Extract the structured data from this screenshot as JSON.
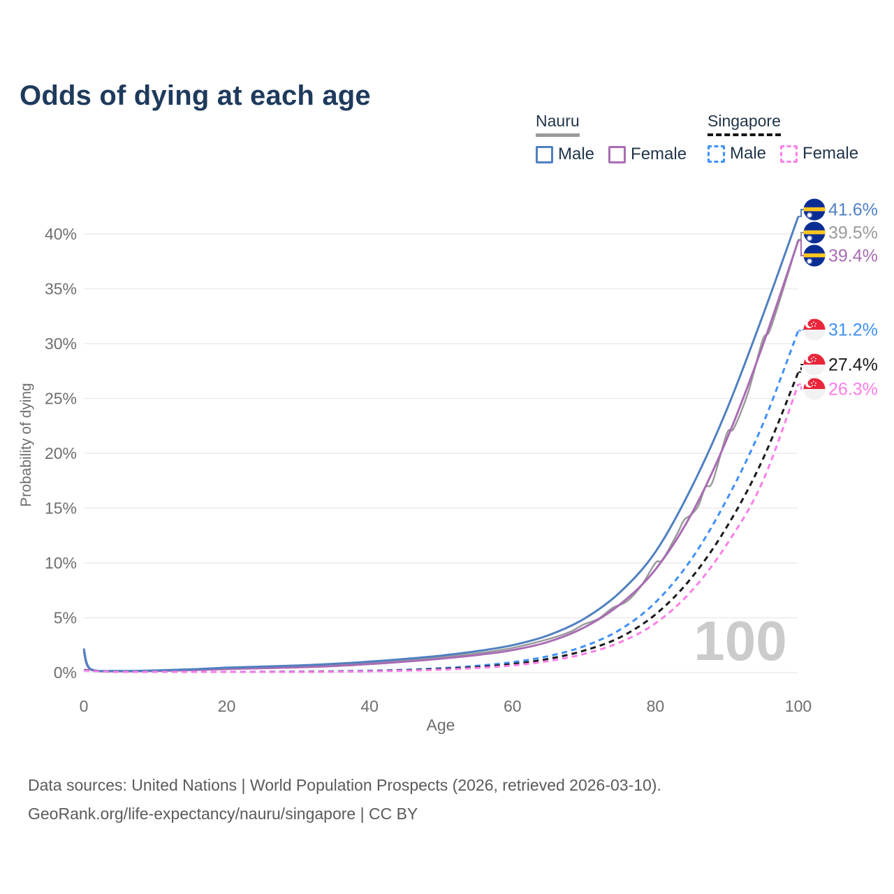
{
  "title": "Odds of dying at each age",
  "legend": {
    "groups": [
      {
        "name": "Nauru",
        "line_style": "solid",
        "line_color": "#9a9a9a",
        "items": [
          {
            "label": "Male",
            "swatch_color": "#5080c0",
            "dashed": false
          },
          {
            "label": "Female",
            "swatch_color": "#a96cb4",
            "dashed": false
          }
        ]
      },
      {
        "name": "Singapore",
        "line_style": "dashed",
        "line_color": "#141414",
        "items": [
          {
            "label": "Male",
            "swatch_color": "#4090f7",
            "dashed": true
          },
          {
            "label": "Female",
            "swatch_color": "#fb7de9",
            "dashed": true
          }
        ]
      }
    ]
  },
  "annotations": {
    "age_counter": "100"
  },
  "footer": {
    "line1": "Data sources: United Nations | World Population Prospects (2026, retrieved 2026-03-10).",
    "line2": "GeoRank.org/life-expectancy/nauru/singapore | CC BY"
  },
  "chart_data": {
    "type": "line",
    "title": "Odds of dying at each age",
    "xlabel": "Age",
    "ylabel": "Probability of dying",
    "xlim": [
      0,
      100
    ],
    "ylim": [
      0,
      43
    ],
    "grid": "horizontal",
    "gridline_color": "#ebebeb",
    "axis_text_color": "#6e6e6e",
    "watermark_color": "#cbcbcb",
    "x_ticks": [
      {
        "v": 0,
        "label": "0"
      },
      {
        "v": 20,
        "label": "20"
      },
      {
        "v": 40,
        "label": "40"
      },
      {
        "v": 60,
        "label": "60"
      },
      {
        "v": 80,
        "label": "80"
      },
      {
        "v": 100,
        "label": "100"
      }
    ],
    "y_ticks": [
      {
        "v": 0,
        "label": "0%"
      },
      {
        "v": 5,
        "label": "5%"
      },
      {
        "v": 10,
        "label": "10%"
      },
      {
        "v": 15,
        "label": "15%"
      },
      {
        "v": 20,
        "label": "20%"
      },
      {
        "v": 25,
        "label": "25%"
      },
      {
        "v": 30,
        "label": "30%"
      },
      {
        "v": 35,
        "label": "35%"
      },
      {
        "v": 40,
        "label": "40%"
      }
    ],
    "series": [
      {
        "id": "nauru_total",
        "name": "Nauru (both sexes)",
        "country": "Nauru",
        "sex": "Total",
        "color": "#9a9a9a",
        "dashed": false,
        "width": 2.5,
        "flag": "nauru",
        "end_label": "39.5%",
        "label_color": "#9a9a9a",
        "points": [
          [
            0,
            2.05
          ],
          [
            1,
            0.28
          ],
          [
            5,
            0.13
          ],
          [
            10,
            0.17
          ],
          [
            15,
            0.26
          ],
          [
            20,
            0.38
          ],
          [
            25,
            0.47
          ],
          [
            30,
            0.56
          ],
          [
            35,
            0.7
          ],
          [
            40,
            0.89
          ],
          [
            45,
            1.12
          ],
          [
            50,
            1.4
          ],
          [
            55,
            1.75
          ],
          [
            60,
            2.25
          ],
          [
            65,
            3.05
          ],
          [
            68,
            3.7
          ],
          [
            70,
            4.4
          ],
          [
            72,
            4.9
          ],
          [
            74,
            5.9
          ],
          [
            76,
            6.5
          ],
          [
            78,
            7.9
          ],
          [
            80,
            10.0
          ],
          [
            81,
            10.3
          ],
          [
            83,
            12.6
          ],
          [
            84,
            13.9
          ],
          [
            85,
            14.4
          ],
          [
            86,
            15.2
          ],
          [
            87,
            16.9
          ],
          [
            88,
            17.4
          ],
          [
            90,
            21.8
          ],
          [
            91,
            22.3
          ],
          [
            93,
            25.6
          ],
          [
            95,
            30.3
          ],
          [
            96,
            31.2
          ],
          [
            98,
            35.2
          ],
          [
            100,
            39.5
          ]
        ]
      },
      {
        "id": "nauru_female",
        "name": "Nauru Female",
        "country": "Nauru",
        "sex": "Female",
        "color": "#a96cb4",
        "dashed": false,
        "width": 3,
        "flag": "nauru",
        "end_label": "39.4%",
        "label_color": "#a96cb4",
        "points": [
          [
            0,
            1.95
          ],
          [
            1,
            0.25
          ],
          [
            5,
            0.12
          ],
          [
            10,
            0.15
          ],
          [
            15,
            0.22
          ],
          [
            20,
            0.32
          ],
          [
            25,
            0.4
          ],
          [
            30,
            0.48
          ],
          [
            35,
            0.6
          ],
          [
            40,
            0.78
          ],
          [
            45,
            1.0
          ],
          [
            50,
            1.27
          ],
          [
            55,
            1.6
          ],
          [
            60,
            2.05
          ],
          [
            65,
            2.8
          ],
          [
            70,
            4.1
          ],
          [
            75,
            6.2
          ],
          [
            80,
            9.4
          ],
          [
            85,
            14.4
          ],
          [
            90,
            21.3
          ],
          [
            95,
            29.8
          ],
          [
            100,
            39.4
          ]
        ]
      },
      {
        "id": "nauru_male",
        "name": "Nauru Male",
        "country": "Nauru",
        "sex": "Male",
        "color": "#5080c0",
        "dashed": false,
        "width": 3,
        "flag": "nauru",
        "end_label": "41.6%",
        "label_color": "#5080c5",
        "points": [
          [
            0,
            2.2
          ],
          [
            1,
            0.3
          ],
          [
            5,
            0.15
          ],
          [
            10,
            0.2
          ],
          [
            15,
            0.3
          ],
          [
            20,
            0.45
          ],
          [
            25,
            0.55
          ],
          [
            30,
            0.65
          ],
          [
            35,
            0.8
          ],
          [
            40,
            1.0
          ],
          [
            45,
            1.25
          ],
          [
            50,
            1.55
          ],
          [
            55,
            1.95
          ],
          [
            60,
            2.5
          ],
          [
            65,
            3.4
          ],
          [
            70,
            4.9
          ],
          [
            75,
            7.3
          ],
          [
            80,
            11.0
          ],
          [
            85,
            16.8
          ],
          [
            90,
            24.0
          ],
          [
            95,
            32.5
          ],
          [
            100,
            41.6
          ]
        ]
      },
      {
        "id": "singapore_male",
        "name": "Singapore Male",
        "country": "Singapore",
        "sex": "Male",
        "color": "#4090f7",
        "dashed": true,
        "width": 3,
        "flag": "singapore",
        "end_label": "31.2%",
        "label_color": "#4090f7",
        "points": [
          [
            0,
            0.25
          ],
          [
            5,
            0.02
          ],
          [
            10,
            0.03
          ],
          [
            15,
            0.05
          ],
          [
            20,
            0.07
          ],
          [
            25,
            0.08
          ],
          [
            30,
            0.09
          ],
          [
            35,
            0.12
          ],
          [
            40,
            0.17
          ],
          [
            45,
            0.26
          ],
          [
            50,
            0.4
          ],
          [
            55,
            0.62
          ],
          [
            60,
            0.95
          ],
          [
            65,
            1.5
          ],
          [
            70,
            2.4
          ],
          [
            75,
            3.9
          ],
          [
            80,
            6.4
          ],
          [
            85,
            10.3
          ],
          [
            90,
            15.8
          ],
          [
            95,
            22.6
          ],
          [
            100,
            31.2
          ]
        ]
      },
      {
        "id": "singapore_total",
        "name": "Singapore (both sexes)",
        "country": "Singapore",
        "sex": "Total",
        "color": "#1a1a1a",
        "dashed": true,
        "width": 3,
        "flag": "singapore",
        "end_label": "27.4%",
        "label_color": "#1a1a1a",
        "points": [
          [
            0,
            0.22
          ],
          [
            5,
            0.02
          ],
          [
            10,
            0.02
          ],
          [
            15,
            0.04
          ],
          [
            20,
            0.06
          ],
          [
            25,
            0.07
          ],
          [
            30,
            0.08
          ],
          [
            35,
            0.1
          ],
          [
            40,
            0.14
          ],
          [
            45,
            0.21
          ],
          [
            50,
            0.33
          ],
          [
            55,
            0.5
          ],
          [
            60,
            0.78
          ],
          [
            65,
            1.25
          ],
          [
            70,
            2.0
          ],
          [
            75,
            3.2
          ],
          [
            80,
            5.3
          ],
          [
            85,
            8.6
          ],
          [
            90,
            13.3
          ],
          [
            95,
            19.4
          ],
          [
            100,
            27.4
          ]
        ]
      },
      {
        "id": "singapore_female",
        "name": "Singapore Female",
        "country": "Singapore",
        "sex": "Female",
        "color": "#fb7de9",
        "dashed": true,
        "width": 3,
        "flag": "singapore",
        "end_label": "26.3%",
        "label_color": "#fb7de9",
        "points": [
          [
            0,
            0.2
          ],
          [
            5,
            0.02
          ],
          [
            10,
            0.02
          ],
          [
            15,
            0.03
          ],
          [
            20,
            0.04
          ],
          [
            25,
            0.05
          ],
          [
            30,
            0.06
          ],
          [
            35,
            0.08
          ],
          [
            40,
            0.12
          ],
          [
            45,
            0.18
          ],
          [
            50,
            0.27
          ],
          [
            55,
            0.42
          ],
          [
            60,
            0.65
          ],
          [
            65,
            1.05
          ],
          [
            70,
            1.7
          ],
          [
            75,
            2.75
          ],
          [
            80,
            4.5
          ],
          [
            85,
            7.4
          ],
          [
            90,
            11.7
          ],
          [
            95,
            17.4
          ],
          [
            100,
            26.3
          ]
        ]
      }
    ]
  }
}
